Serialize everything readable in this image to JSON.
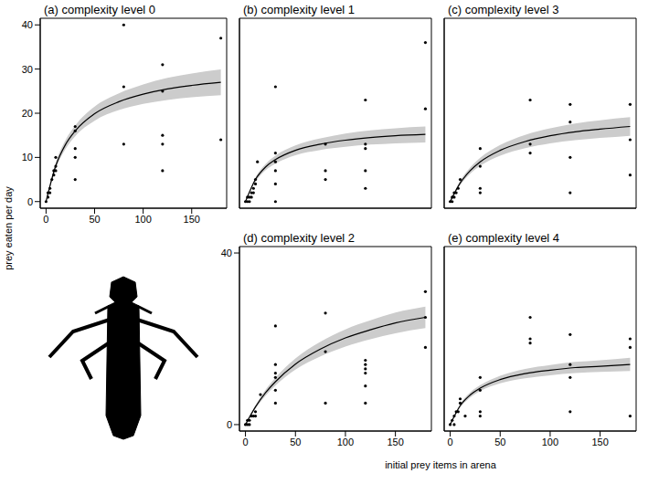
{
  "xlabel": "initial prey items in arena",
  "ylabel": "prey eaten per day",
  "chart_data": [
    {
      "type": "scatter",
      "title": "(a) complexity level 0",
      "color": "#000000",
      "marker": "circle",
      "tick_labels": true,
      "xlim": [
        -6,
        186
      ],
      "ylim": [
        -1.5,
        41.5
      ],
      "xticks": [
        0,
        50,
        100,
        150
      ],
      "yticks": [
        0,
        10,
        20,
        30,
        40
      ],
      "x": [
        0,
        2,
        2,
        4,
        4,
        6,
        8,
        8,
        10,
        10,
        10,
        30,
        30,
        30,
        30,
        30,
        80,
        80,
        80,
        120,
        120,
        120,
        120,
        120,
        180,
        180
      ],
      "values": [
        0,
        1,
        2,
        3,
        2,
        5,
        6,
        7,
        8,
        10,
        7,
        17,
        16,
        12,
        10,
        5,
        26,
        13,
        40,
        31,
        25,
        15,
        13,
        7,
        37,
        14
      ],
      "fit": {
        "x": [
          0,
          10,
          20,
          30,
          50,
          75,
          100,
          125,
          150,
          180
        ],
        "values": [
          0,
          8.1,
          12.9,
          16.0,
          19.9,
          22.6,
          24.3,
          25.5,
          26.3,
          27.0
        ],
        "lower": [
          0,
          7.4,
          11.9,
          14.8,
          18.3,
          20.7,
          22.1,
          23.0,
          23.6,
          24.1
        ],
        "upper": [
          0,
          8.8,
          13.9,
          17.2,
          21.5,
          24.5,
          26.5,
          28.0,
          29.0,
          29.9
        ]
      }
    },
    {
      "type": "scatter",
      "title": "(b) complexity level 1",
      "color": "#000000",
      "marker": "circle",
      "tick_labels": false,
      "xlim": [
        -6,
        186
      ],
      "ylim": [
        -1.5,
        41.5
      ],
      "xticks": [
        0,
        50,
        100,
        150
      ],
      "yticks": [
        0,
        10,
        20,
        30,
        40
      ],
      "x": [
        0,
        2,
        2,
        4,
        4,
        6,
        6,
        8,
        8,
        10,
        10,
        12,
        30,
        30,
        30,
        30,
        30,
        30,
        80,
        80,
        80,
        120,
        120,
        120,
        120,
        120,
        180,
        180
      ],
      "values": [
        0,
        0,
        1,
        0,
        1,
        2,
        1,
        3,
        2,
        5,
        4,
        9,
        26,
        11,
        9,
        7,
        4,
        0,
        13,
        7,
        5,
        23,
        13,
        12,
        7,
        3,
        36,
        21
      ],
      "fit": {
        "x": [
          0,
          10,
          20,
          30,
          50,
          75,
          100,
          125,
          150,
          180
        ],
        "values": [
          0,
          5.0,
          7.8,
          9.5,
          11.6,
          13.0,
          13.9,
          14.5,
          14.9,
          15.2
        ],
        "lower": [
          0,
          4.5,
          7.1,
          8.6,
          10.5,
          11.7,
          12.4,
          12.9,
          13.2,
          13.4
        ],
        "upper": [
          0,
          5.5,
          8.5,
          10.4,
          12.7,
          14.3,
          15.4,
          16.1,
          16.6,
          17.0
        ]
      }
    },
    {
      "type": "scatter",
      "title": "(c) complexity level 3",
      "color": "#000000",
      "marker": "circle",
      "tick_labels": false,
      "xlim": [
        -6,
        186
      ],
      "ylim": [
        -1.5,
        41.5
      ],
      "xticks": [
        0,
        50,
        100,
        150
      ],
      "yticks": [
        0,
        10,
        20,
        30,
        40
      ],
      "x": [
        0,
        2,
        2,
        4,
        4,
        6,
        8,
        10,
        30,
        30,
        30,
        30,
        80,
        80,
        80,
        120,
        120,
        120,
        120,
        180,
        180,
        180
      ],
      "values": [
        0,
        0,
        1,
        1,
        2,
        2,
        3,
        5,
        12,
        8,
        3,
        2,
        23,
        13,
        11,
        22,
        18,
        10,
        2,
        22,
        14,
        6
      ],
      "fit": {
        "x": [
          0,
          10,
          20,
          30,
          50,
          75,
          100,
          125,
          150,
          180
        ],
        "values": [
          0,
          4.2,
          7.0,
          9.0,
          11.6,
          13.6,
          14.9,
          15.8,
          16.4,
          17.0
        ],
        "lower": [
          0,
          3.7,
          6.3,
          8.1,
          10.4,
          12.1,
          13.2,
          13.9,
          14.4,
          14.9
        ],
        "upper": [
          0,
          4.7,
          7.7,
          9.9,
          12.8,
          15.1,
          16.6,
          17.7,
          18.4,
          19.1
        ]
      }
    },
    {
      "type": "scatter",
      "title": "(d) complexity level 2",
      "color": "#000000",
      "marker": "circle",
      "tick_labels": true,
      "xlim": [
        -6,
        186
      ],
      "ylim": [
        -1.5,
        41.5
      ],
      "xticks": [
        0,
        50,
        100,
        150
      ],
      "yticks": [
        0,
        40
      ],
      "x": [
        0,
        2,
        2,
        4,
        4,
        6,
        8,
        10,
        10,
        15,
        30,
        30,
        30,
        30,
        30,
        30,
        80,
        80,
        80,
        120,
        120,
        120,
        120,
        120,
        120,
        180,
        180,
        180
      ],
      "values": [
        0,
        0,
        1,
        0,
        1,
        2,
        2,
        3,
        2,
        7,
        23,
        14,
        12,
        11,
        8,
        5,
        26,
        17,
        5,
        15,
        14,
        13,
        12,
        9,
        5,
        31,
        25,
        18
      ],
      "fit": {
        "x": [
          0,
          10,
          20,
          30,
          50,
          75,
          100,
          125,
          150,
          180
        ],
        "values": [
          0,
          4.1,
          7.4,
          10.0,
          14.1,
          17.6,
          20.2,
          22.1,
          23.7,
          25.0
        ],
        "lower": [
          0,
          3.7,
          6.7,
          9.1,
          12.8,
          15.9,
          18.2,
          19.9,
          21.3,
          22.5
        ],
        "upper": [
          0,
          4.5,
          8.1,
          10.9,
          15.4,
          19.3,
          22.2,
          24.3,
          26.1,
          27.5
        ]
      }
    },
    {
      "type": "scatter",
      "title": "(e) complexity level 4",
      "color": "#000000",
      "marker": "circle",
      "tick_labels": "x",
      "xlim": [
        -6,
        186
      ],
      "ylim": [
        -1.5,
        41.5
      ],
      "xticks": [
        0,
        50,
        100,
        150
      ],
      "yticks": [
        0,
        10,
        20,
        30,
        40
      ],
      "x": [
        0,
        2,
        4,
        4,
        6,
        8,
        10,
        10,
        15,
        30,
        30,
        30,
        30,
        80,
        80,
        80,
        120,
        120,
        120,
        120,
        180,
        180,
        180
      ],
      "values": [
        0,
        1,
        2,
        0,
        3,
        3,
        6,
        5,
        2,
        11,
        8,
        3,
        2,
        25,
        20,
        19,
        21,
        14,
        11,
        3,
        20,
        18,
        2
      ],
      "fit": {
        "x": [
          0,
          10,
          20,
          30,
          50,
          75,
          100,
          125,
          150,
          180
        ],
        "values": [
          0,
          4.4,
          6.9,
          8.5,
          10.5,
          11.9,
          12.7,
          13.3,
          13.6,
          14.0
        ],
        "lower": [
          0,
          4.0,
          6.3,
          7.8,
          9.6,
          10.8,
          11.5,
          12.0,
          12.3,
          12.5
        ],
        "upper": [
          0,
          4.8,
          7.5,
          9.2,
          11.4,
          13.0,
          13.9,
          14.6,
          15.0,
          15.6
        ]
      }
    }
  ]
}
